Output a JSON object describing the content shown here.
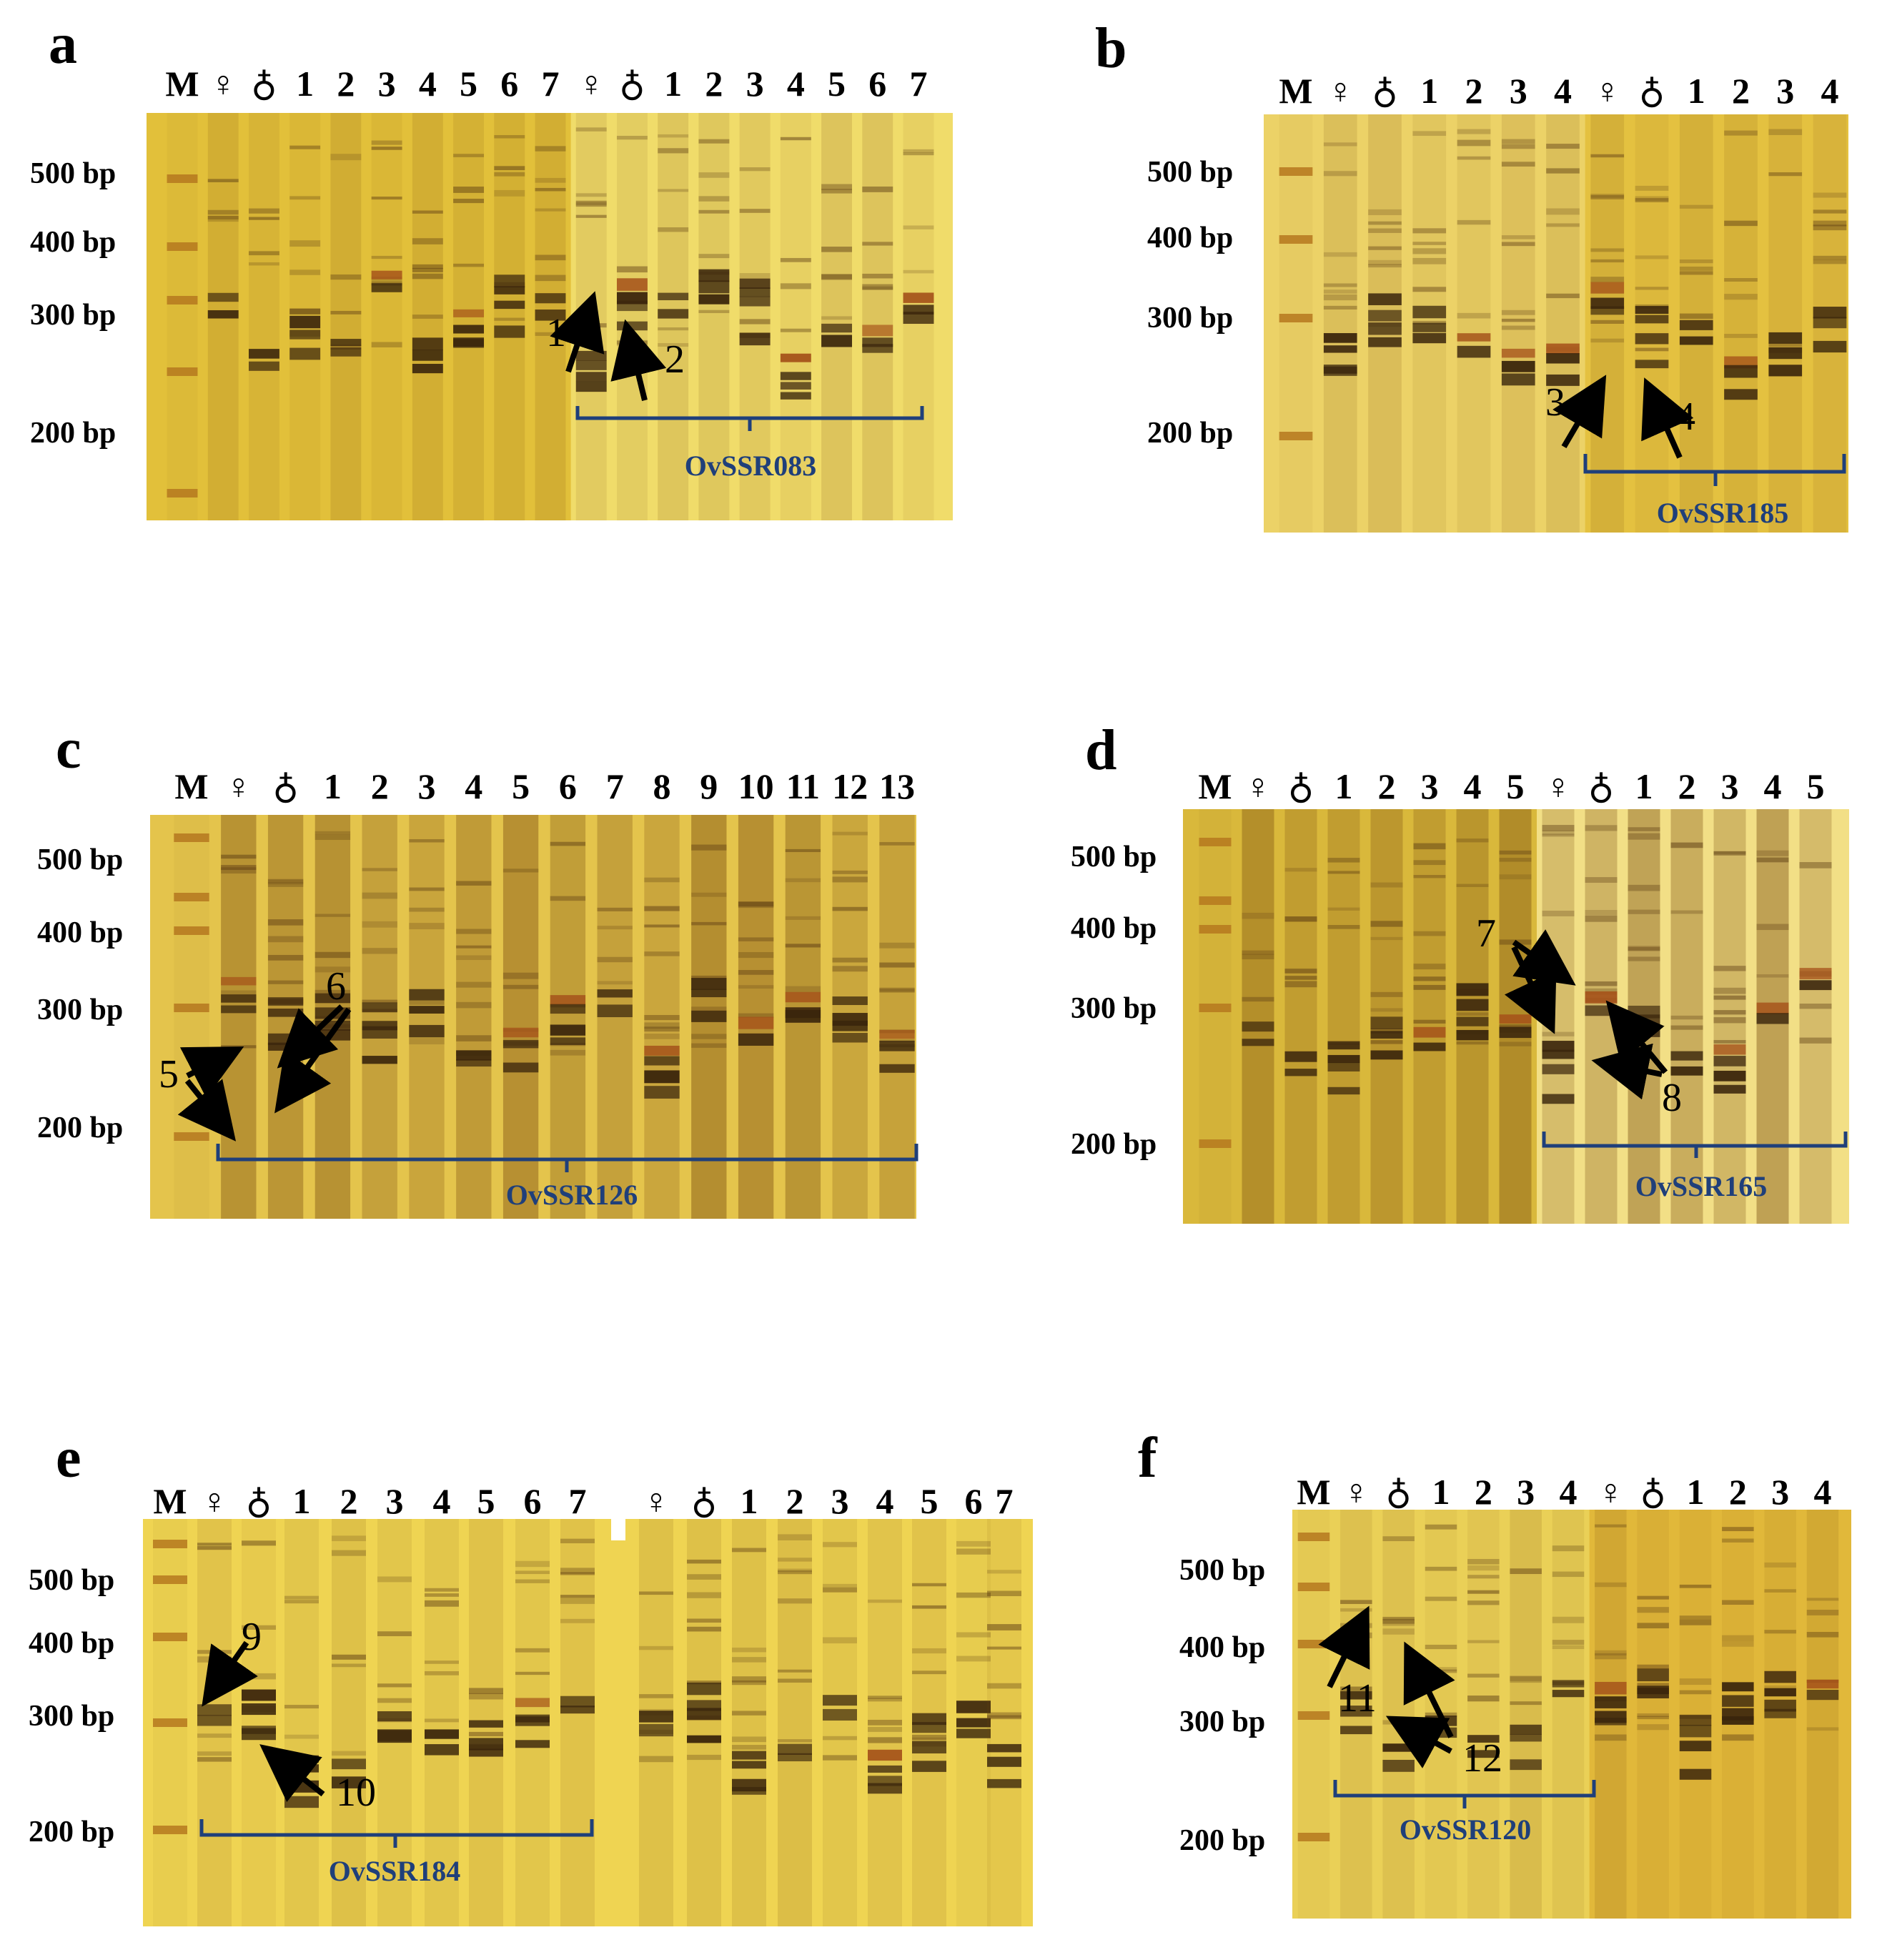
{
  "colors": {
    "gel": "#e8c83a",
    "band": "#5a3a12",
    "bracket": "#1f3f7a"
  },
  "bp_labels": [
    "500 bp",
    "400 bp",
    "300 bp",
    "200 bp"
  ],
  "panels": {
    "a": {
      "letter": "a",
      "lanes": [
        "M",
        "♀",
        "♁",
        "1",
        "2",
        "3",
        "4",
        "5",
        "6",
        "7",
        "♀",
        "♁",
        "1",
        "2",
        "3",
        "4",
        "5",
        "6",
        "7"
      ],
      "marker": "OvSSR083",
      "annotations": [
        "1",
        "2"
      ]
    },
    "b": {
      "letter": "b",
      "lanes": [
        "M",
        "♀",
        "♁",
        "1",
        "2",
        "3",
        "4",
        "♀",
        "♁",
        "1",
        "2",
        "3",
        "4"
      ],
      "marker": "OvSSR185",
      "annotations": [
        "3",
        "4"
      ]
    },
    "c": {
      "letter": "c",
      "lanes": [
        "M",
        "♀",
        "♁",
        "1",
        "2",
        "3",
        "4",
        "5",
        "6",
        "7",
        "8",
        "9",
        "10",
        "11",
        "12",
        "13"
      ],
      "marker": "OvSSR126",
      "annotations": [
        "5",
        "6"
      ]
    },
    "d": {
      "letter": "d",
      "lanes": [
        "M",
        "♀",
        "♁",
        "1",
        "2",
        "3",
        "4",
        "5",
        "♀",
        "♁",
        "1",
        "2",
        "3",
        "4",
        "5"
      ],
      "marker": "OvSSR165",
      "annotations": [
        "7",
        "8"
      ]
    },
    "e": {
      "letter": "e",
      "lanes": [
        "M",
        "♀",
        "♁",
        "1",
        "2",
        "3",
        "4",
        "5",
        "6",
        "7",
        "♀",
        "♁",
        "1",
        "2",
        "3",
        "4",
        "5",
        "6",
        "7"
      ],
      "marker": "OvSSR184",
      "annotations": [
        "9",
        "10"
      ]
    },
    "f": {
      "letter": "f",
      "lanes": [
        "M",
        "♀",
        "♁",
        "1",
        "2",
        "3",
        "4",
        "♀",
        "♁",
        "1",
        "2",
        "3",
        "4"
      ],
      "marker": "OvSSR120",
      "annotations": [
        "11",
        "12"
      ]
    }
  }
}
